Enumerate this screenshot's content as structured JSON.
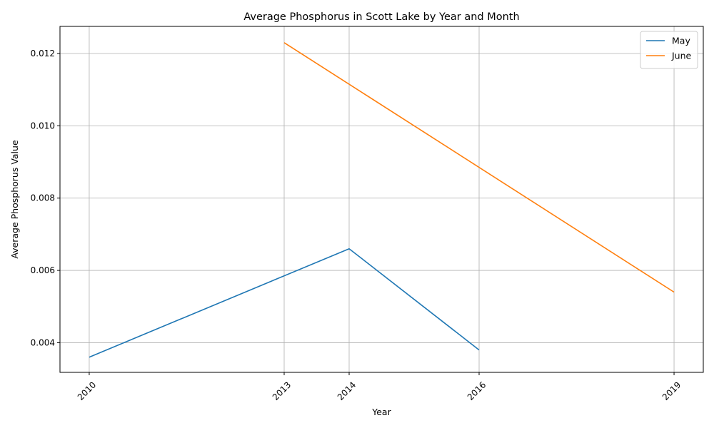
{
  "chart_data": {
    "type": "line",
    "title": "Average Phosphorus in Scott Lake by Year and Month",
    "xlabel": "Year",
    "ylabel": "Average Phosphorus Value",
    "x_ticks": [
      2010,
      2013,
      2014,
      2016,
      2019
    ],
    "x_tick_labels": [
      "2010",
      "2013",
      "2014",
      "2016",
      "2019"
    ],
    "y_ticks": [
      0.004,
      0.006,
      0.008,
      0.01,
      0.012
    ],
    "y_tick_labels": [
      "0.004",
      "0.006",
      "0.008",
      "0.010",
      "0.012"
    ],
    "xlim": [
      2009.55,
      2019.45
    ],
    "ylim": [
      0.00318,
      0.01275
    ],
    "grid": true,
    "legend_position": "top-right",
    "series": [
      {
        "name": "May",
        "color": "#1f77b4",
        "points": [
          {
            "x": 2010,
            "y": 0.0036
          },
          {
            "x": 2014,
            "y": 0.0066
          },
          {
            "x": 2016,
            "y": 0.0038
          }
        ]
      },
      {
        "name": "June",
        "color": "#ff7f0e",
        "points": [
          {
            "x": 2013,
            "y": 0.0123
          },
          {
            "x": 2019,
            "y": 0.0054
          }
        ]
      }
    ]
  }
}
